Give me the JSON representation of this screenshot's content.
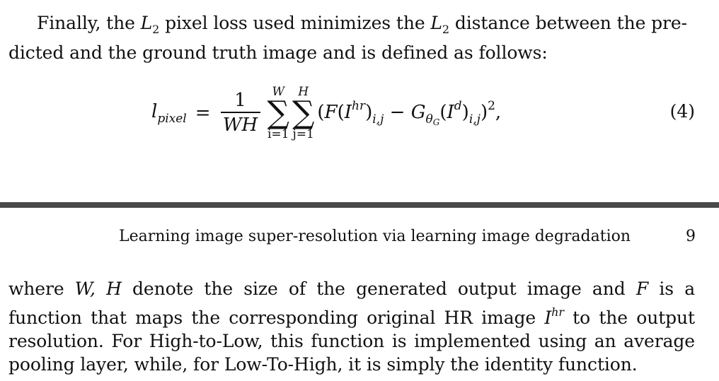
{
  "paragraph1": {
    "line1_a": "Finally, the ",
    "var_L": "L",
    "sub_2": "2",
    "line1_b": " pixel loss used minimizes the ",
    "line1_c": " distance between the pre-",
    "line2": "dicted and the ground truth image and is defined as follows:"
  },
  "equation": {
    "lhs": "l",
    "lhs_sub": "pixel",
    "equals": "=",
    "frac_num": "1",
    "frac_den": "WH",
    "sum1_top": "W",
    "sum1_bottom": "i=1",
    "sum2_top": "H",
    "sum2_bottom": "j=1",
    "sigma": "∑",
    "t_open": "(",
    "t_F": "F",
    "t_paren_open": "(",
    "t_I": "I",
    "t_hr": "hr",
    "t_close": ")",
    "t_ij": "i,j",
    "t_minus": " − ",
    "t_G": "G",
    "t_theta": "θ",
    "t_thetaG": "G",
    "t_Id": "d",
    "t_end": ")",
    "t_sq": "2",
    "t_comma": ",",
    "number": "(4)"
  },
  "header": {
    "title": "Learning image super-resolution via learning image degradation",
    "page_number": "9"
  },
  "paragraph2": {
    "a": "where ",
    "W": "W, H",
    "b": " denote the size of the generated output image and ",
    "F": "F",
    "c": " is a function that maps the corresponding original HR image ",
    "I": "I",
    "hr": "hr",
    "d": " to the output resolution. For High-to-Low, this function is implemented using an average pooling layer, while, for Low-To-High, it is simply the identity function."
  }
}
